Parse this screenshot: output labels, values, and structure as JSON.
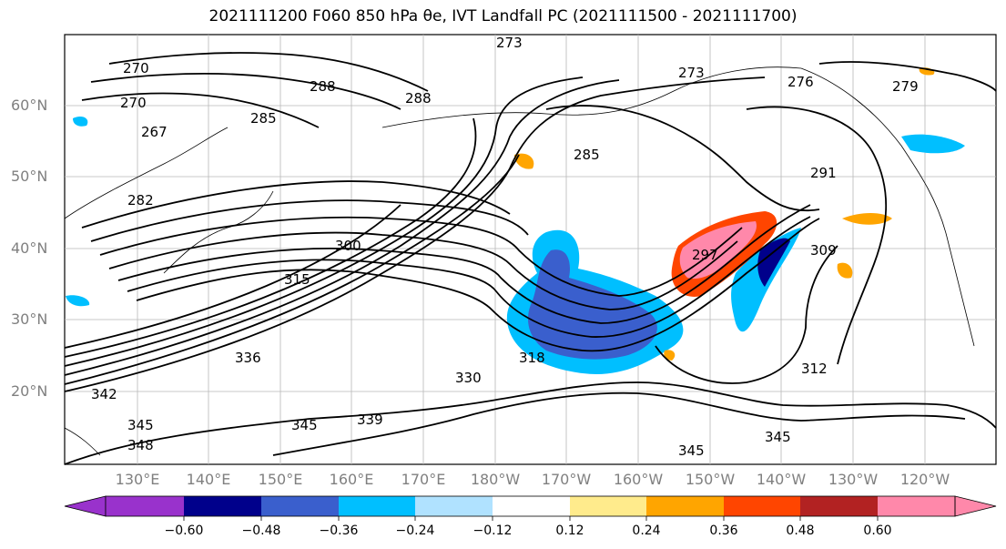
{
  "title": "2021111200 F060 850 hPa θe, IVT Landfall PC (2021111500 - 2021111700)",
  "lat_labels": [
    "60°N",
    "50°N",
    "40°N",
    "30°N",
    "20°N"
  ],
  "lon_labels": [
    "130°E",
    "140°E",
    "150°E",
    "160°E",
    "170°E",
    "180°W",
    "170°W",
    "160°W",
    "150°W",
    "140°W",
    "130°W",
    "120°W"
  ],
  "contour_labels": [
    "270",
    "273",
    "267",
    "270",
    "288",
    "288",
    "285",
    "285",
    "282",
    "300",
    "315",
    "297",
    "291",
    "309",
    "312",
    "318",
    "330",
    "336",
    "342",
    "345",
    "345",
    "348",
    "339",
    "345",
    "345",
    "276",
    "279",
    "273"
  ],
  "colorbar": {
    "ticks": [
      "−0.60",
      "−0.48",
      "−0.36",
      "−0.24",
      "−0.12",
      "0.12",
      "0.24",
      "0.36",
      "0.48",
      "0.60"
    ],
    "colors": [
      "#9932cc",
      "#00008b",
      "#3a5fcd",
      "#00bfff",
      "#b0e2ff",
      "#ffffff",
      "#ffeb8c",
      "#ffa500",
      "#ff4500",
      "#b22222",
      "#ff88aa"
    ]
  }
}
